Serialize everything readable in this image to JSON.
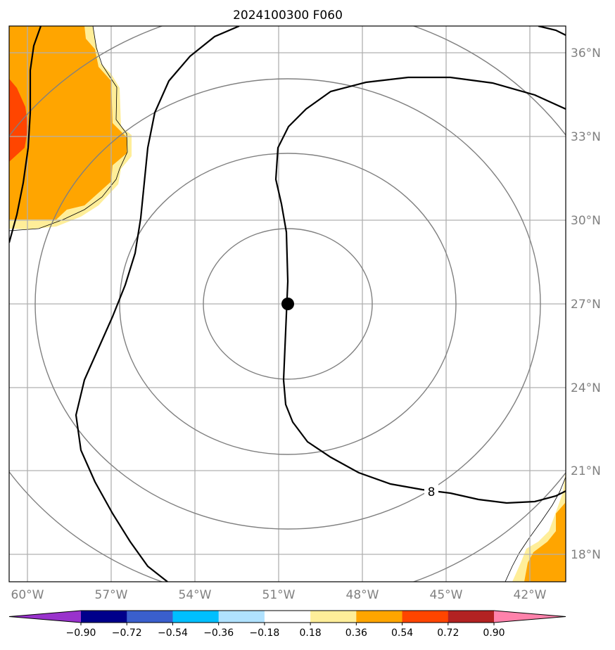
{
  "map": {
    "title": "2024100300 F060",
    "center_marker": {
      "lon": -50.6,
      "lat": 27.0,
      "color": "#000000"
    },
    "lon_ticks": [
      {
        "lon": -60,
        "label": "60°W"
      },
      {
        "lon": -57,
        "label": "57°W"
      },
      {
        "lon": -54,
        "label": "54°W"
      },
      {
        "lon": -51,
        "label": "51°W"
      },
      {
        "lon": -48,
        "label": "48°W"
      },
      {
        "lon": -45,
        "label": "45°W"
      },
      {
        "lon": -42,
        "label": "42°W"
      }
    ],
    "lat_ticks": [
      {
        "lat": 36,
        "label": "36°N"
      },
      {
        "lat": 33,
        "label": "33°N"
      },
      {
        "lat": 30,
        "label": "30°N"
      },
      {
        "lat": 27,
        "label": "27°N"
      },
      {
        "lat": 24,
        "label": "24°N"
      },
      {
        "lat": 21,
        "label": "21°N"
      },
      {
        "lat": 18,
        "label": "18°N"
      }
    ],
    "contour_label": "8",
    "colors": {
      "light_yellow": "#ffee99",
      "orange": "#ffa500",
      "red_orange": "#ff4500",
      "gridline": "#b0b0b0",
      "range_ring": "#808080",
      "contour": "#000000"
    }
  },
  "colorbar": {
    "ticks": [
      "−0.90",
      "−0.72",
      "−0.54",
      "−0.36",
      "−0.18",
      "0.18",
      "0.36",
      "0.54",
      "0.72",
      "0.90"
    ],
    "colors": [
      "#9932cc",
      "#00008b",
      "#3a5fcd",
      "#00bfff",
      "#b0e2ff",
      "#ffffff",
      "#ffee99",
      "#ffa500",
      "#ff4500",
      "#b22222",
      "#ff82ab"
    ]
  }
}
